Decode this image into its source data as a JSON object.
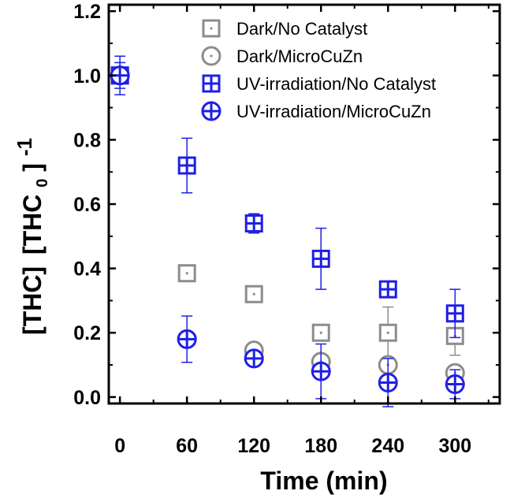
{
  "chart_data": {
    "type": "scatter",
    "title": "",
    "xlabel": "Time (min)",
    "ylabel": {
      "part1": "[THC]",
      "part2": "[THC",
      "sub": "0",
      "part3": "]",
      "sup": "-1"
    },
    "xlim": [
      -10,
      340
    ],
    "ylim": [
      -0.02,
      1.22
    ],
    "xticks": [
      0,
      60,
      120,
      180,
      240,
      300
    ],
    "yticks": [
      0.0,
      0.2,
      0.4,
      0.6,
      0.8,
      1.0,
      1.2
    ],
    "ytick_labels": [
      "0.0",
      "0.2",
      "0.4",
      "0.6",
      "0.8",
      "1.0",
      "1.2"
    ],
    "grid": false,
    "legend_position": "top-right",
    "series": [
      {
        "name": "Dark/No Catalyst",
        "marker": "square-dot",
        "color": "#8c8c8c",
        "x": [
          0,
          60,
          120,
          180,
          240,
          300
        ],
        "y": [
          1.0,
          0.385,
          0.32,
          0.2,
          0.2,
          0.19
        ],
        "err": [
          0.0,
          0.02,
          0.02,
          0.02,
          0.08,
          0.06
        ]
      },
      {
        "name": "Dark/MicroCuZn",
        "marker": "circle-dot",
        "color": "#8c8c8c",
        "x": [
          0,
          60,
          120,
          180,
          240,
          300
        ],
        "y": [
          1.0,
          0.18,
          0.145,
          0.11,
          0.1,
          0.075
        ],
        "err": [
          0.0,
          0.02,
          0.02,
          0.02,
          0.02,
          0.02
        ]
      },
      {
        "name": "UV-irradiation/No Catalyst",
        "marker": "square-plus",
        "color": "#1f1fe6",
        "x": [
          0,
          60,
          120,
          180,
          240,
          300
        ],
        "y": [
          1.0,
          0.72,
          0.54,
          0.43,
          0.335,
          0.26
        ],
        "err": [
          0.06,
          0.085,
          0.03,
          0.095,
          0.02,
          0.075
        ]
      },
      {
        "name": "UV-irradiation/MicroCuZn",
        "marker": "circle-plus",
        "color": "#1f1fe6",
        "x": [
          0,
          60,
          120,
          180,
          240,
          300
        ],
        "y": [
          1.0,
          0.18,
          0.12,
          0.08,
          0.045,
          0.04
        ],
        "err": [
          0.04,
          0.072,
          0.02,
          0.085,
          0.075,
          0.045
        ]
      }
    ]
  }
}
